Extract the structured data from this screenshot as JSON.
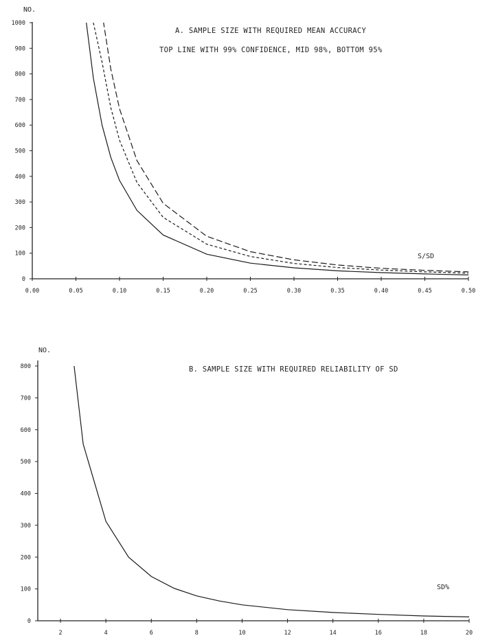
{
  "chart_data": [
    {
      "type": "line",
      "title": "A. SAMPLE SIZE WITH REQUIRED MEAN ACCURACY",
      "subtitle": "TOP LINE WITH 99% CONFIDENCE, MID 98%, BOTTOM 95%",
      "ylabel": "NO.",
      "xlabel": "S/SD",
      "xlim": [
        0,
        0.5
      ],
      "ylim": [
        0,
        1000
      ],
      "x_ticks": [
        "0.00",
        "0.05",
        "0.10",
        "0.15",
        "0.20",
        "0.25",
        "0.30",
        "0.35",
        "0.40",
        "0.45",
        "0.50"
      ],
      "y_ticks": [
        "0",
        "100",
        "200",
        "300",
        "400",
        "500",
        "600",
        "700",
        "800",
        "900",
        "1000"
      ],
      "series": [
        {
          "x": [
            0.077,
            0.08,
            0.09,
            0.1,
            0.12,
            0.15,
            0.2,
            0.25,
            0.3,
            0.35,
            0.4,
            0.45,
            0.5
          ],
          "values": [
            1000,
            1037,
            819,
            664,
            461,
            295,
            166,
            106,
            74,
            54,
            41,
            33,
            27
          ],
          "style": "long-dash"
        },
        {
          "x": [
            0.07,
            0.08,
            0.09,
            0.1,
            0.12,
            0.15,
            0.2,
            0.25,
            0.3,
            0.35,
            0.4,
            0.45,
            0.5
          ],
          "values": [
            1000,
            846,
            668,
            541,
            376,
            240,
            135,
            87,
            60,
            44,
            34,
            27,
            22
          ],
          "style": "short-dash"
        },
        {
          "x": [
            0.062,
            0.07,
            0.08,
            0.09,
            0.1,
            0.12,
            0.15,
            0.2,
            0.25,
            0.3,
            0.35,
            0.4,
            0.45,
            0.5
          ],
          "values": [
            1000,
            784,
            600,
            474,
            384,
            267,
            171,
            96,
            61,
            43,
            31,
            24,
            19,
            15
          ],
          "style": "solid"
        }
      ]
    },
    {
      "type": "line",
      "title": "B. SAMPLE SIZE WITH REQUIRED RELIABILITY OF SD",
      "ylabel": "NO.",
      "xlabel": "SD%",
      "xlim": [
        1,
        20
      ],
      "ylim": [
        0,
        800
      ],
      "x_ticks": [
        "2",
        "4",
        "6",
        "8",
        "10",
        "12",
        "14",
        "16",
        "18",
        "20"
      ],
      "y_ticks": [
        "0",
        "100",
        "200",
        "300",
        "400",
        "500",
        "600",
        "700",
        "800"
      ],
      "series": [
        {
          "x": [
            2.6,
            3,
            4,
            5,
            6,
            7,
            8,
            9,
            10,
            12,
            14,
            16,
            18,
            20
          ],
          "values": [
            800,
            555,
            312,
            200,
            139,
            102,
            78,
            62,
            50,
            35,
            26,
            20,
            15,
            12
          ],
          "style": "solid"
        }
      ]
    }
  ]
}
